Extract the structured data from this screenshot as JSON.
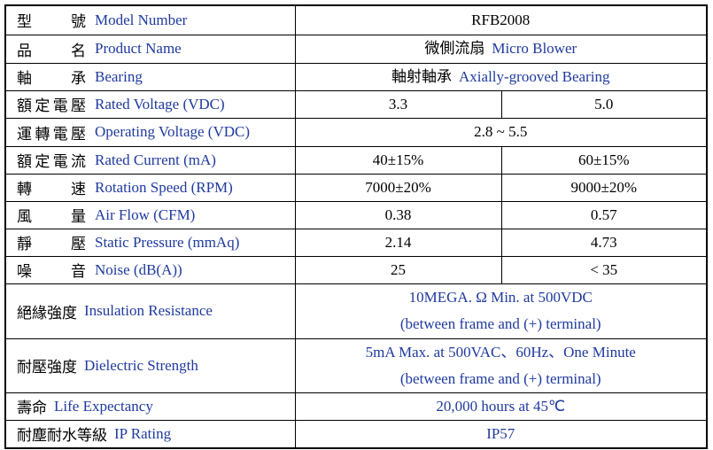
{
  "table": {
    "label_color": "#000000",
    "english_color": "#1f3a9e",
    "rows": [
      {
        "zh": "型號",
        "en": "Model Number",
        "cells": [
          {
            "lines": [
              "RFB2008"
            ],
            "color": "#000000"
          }
        ]
      },
      {
        "zh": "品名",
        "en": "Product Name",
        "cells": [
          {
            "zh": "微側流扇",
            "en": "Micro Blower"
          }
        ]
      },
      {
        "zh": "軸承",
        "en": "Bearing",
        "cells": [
          {
            "zh": "軸射軸承",
            "en": "Axially-grooved Bearing"
          }
        ]
      },
      {
        "zh": "額定電壓",
        "en": "Rated Voltage (VDC)",
        "cells": [
          {
            "lines": [
              "3.3"
            ],
            "color": "#000000"
          },
          {
            "lines": [
              "5.0"
            ],
            "color": "#000000"
          }
        ]
      },
      {
        "zh": "運轉電壓",
        "en": "Operating Voltage (VDC)",
        "cells": [
          {
            "lines": [
              "2.8 ~ 5.5"
            ],
            "color": "#000000"
          }
        ]
      },
      {
        "zh": "額定電流",
        "en": "Rated Current (mA)",
        "cells": [
          {
            "lines": [
              "40±15%"
            ],
            "color": "#000000"
          },
          {
            "lines": [
              "60±15%"
            ],
            "color": "#000000"
          }
        ]
      },
      {
        "zh": "轉速",
        "en": "Rotation Speed (RPM)",
        "cells": [
          {
            "lines": [
              "7000±20%"
            ],
            "color": "#000000"
          },
          {
            "lines": [
              "9000±20%"
            ],
            "color": "#000000"
          }
        ]
      },
      {
        "zh": "風量",
        "en": "Air Flow (CFM)",
        "cells": [
          {
            "lines": [
              "0.38"
            ],
            "color": "#000000"
          },
          {
            "lines": [
              "0.57"
            ],
            "color": "#000000"
          }
        ]
      },
      {
        "zh": "靜壓",
        "en": "Static Pressure (mmAq)",
        "cells": [
          {
            "lines": [
              "2.14"
            ],
            "color": "#000000"
          },
          {
            "lines": [
              "4.73"
            ],
            "color": "#000000"
          }
        ]
      },
      {
        "zh": "噪音",
        "en": "Noise (dB(A))",
        "cells": [
          {
            "lines": [
              "25"
            ],
            "color": "#000000"
          },
          {
            "lines": [
              "< 35"
            ],
            "color": "#000000"
          }
        ]
      },
      {
        "zh": "絕緣強度",
        "en": "Insulation Resistance",
        "cells": [
          {
            "lines": [
              "10MEGA. Ω Min. at 500VDC",
              "(between frame and (+) terminal)"
            ],
            "color": "#1f3a9e"
          }
        ]
      },
      {
        "zh": "耐壓強度",
        "en": "Dielectric Strength",
        "cells": [
          {
            "lines": [
              "5mA Max. at 500VAC、60Hz、One Minute",
              "(between frame and (+) terminal)"
            ],
            "color": "#1f3a9e"
          }
        ]
      },
      {
        "zh": "壽命",
        "en": "Life Expectancy",
        "cells": [
          {
            "lines": [
              "20,000 hours at 45℃"
            ],
            "color": "#1f3a9e"
          }
        ]
      },
      {
        "zh": "耐塵耐水等級",
        "en": "IP Rating",
        "cells": [
          {
            "lines": [
              "IP57"
            ],
            "color": "#1f3a9e"
          }
        ]
      }
    ]
  }
}
